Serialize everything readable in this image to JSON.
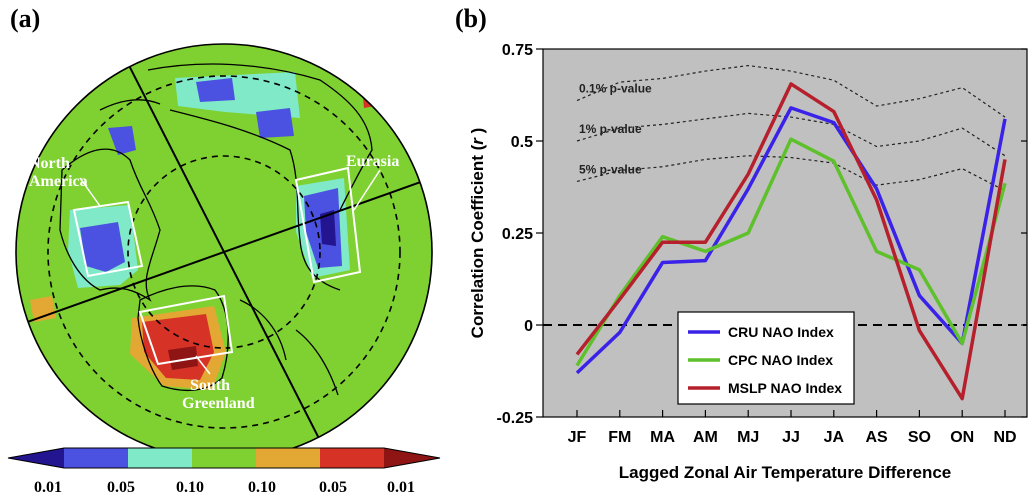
{
  "panel_a": {
    "label": "(a)",
    "regions": [
      "North America",
      "Eurasia",
      "South Greenland"
    ],
    "colorbar": {
      "tick_labels": [
        "0.01",
        "0.05",
        "0.10",
        "0.10",
        "0.05",
        "0.01"
      ],
      "colors": [
        "#23148f",
        "#4b51e0",
        "#7fe9c8",
        "#7ed130",
        "#e3a833",
        "#d63226",
        "#8f1414"
      ]
    },
    "colors": {
      "background": "#7ed130",
      "blue": "#4b51e0",
      "dark_blue": "#23148f",
      "cyan": "#7fe9c8",
      "orange": "#e3a833",
      "red": "#d63226",
      "dark_red": "#8f1414"
    }
  },
  "panel_b": {
    "label": "(b)",
    "chart_data": {
      "type": "line",
      "categories": [
        "JF",
        "FM",
        "MA",
        "AM",
        "MJ",
        "JJ",
        "JA",
        "AS",
        "SO",
        "ON",
        "ND"
      ],
      "series": [
        {
          "name": "CRU NAO Index",
          "color": "#3a22e8",
          "values": [
            -0.13,
            -0.02,
            0.17,
            0.175,
            0.37,
            0.59,
            0.55,
            0.37,
            0.08,
            -0.05,
            0.56
          ]
        },
        {
          "name": "CPC NAO Index",
          "color": "#5ec12c",
          "values": [
            -0.11,
            0.08,
            0.24,
            0.2,
            0.25,
            0.505,
            0.445,
            0.2,
            0.15,
            -0.05,
            0.385
          ]
        },
        {
          "name": "MSLP NAO Index",
          "color": "#b5202c",
          "values": [
            -0.08,
            0.07,
            0.225,
            0.225,
            0.41,
            0.655,
            0.58,
            0.34,
            -0.015,
            -0.2,
            0.45
          ]
        }
      ],
      "significance_lines": [
        {
          "label": "0.1% p-value",
          "values": [
            0.61,
            0.66,
            0.67,
            0.69,
            0.705,
            0.69,
            0.665,
            0.595,
            0.615,
            0.645,
            0.565
          ]
        },
        {
          "label": "1% p-value",
          "values": [
            0.5,
            0.535,
            0.545,
            0.56,
            0.575,
            0.565,
            0.545,
            0.485,
            0.5,
            0.535,
            0.46
          ]
        },
        {
          "label": "5% p-value",
          "values": [
            0.39,
            0.42,
            0.43,
            0.45,
            0.46,
            0.455,
            0.44,
            0.38,
            0.395,
            0.425,
            0.365
          ]
        }
      ],
      "xlabel": "Lagged Zonal Air Temperature Difference",
      "ylabel_prefix": "Correlation Coefficient (",
      "ylabel_italic": "r",
      "ylabel_suffix": " )",
      "ylim": [
        -0.25,
        0.75
      ],
      "yticks": [
        -0.25,
        0,
        0.25,
        0.5,
        0.75
      ],
      "ytick_labels": [
        "-0.25",
        "0",
        "0.25",
        "0.5",
        "0.75"
      ],
      "grid": false,
      "legend_position": "bottom-center",
      "plot_background": "#c0c0c0"
    }
  }
}
